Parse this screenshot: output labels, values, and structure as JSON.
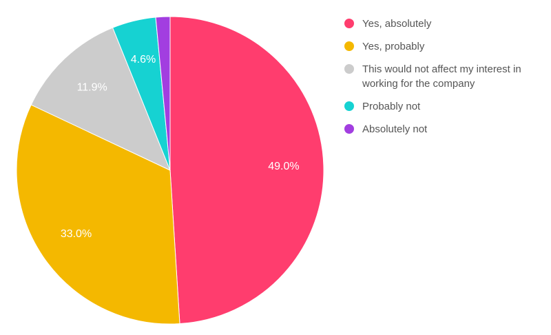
{
  "chart_data": {
    "type": "pie",
    "categories": [
      "Yes, absolutely",
      "Yes, probably",
      "This would not affect my interest in working for the company",
      "Probably not",
      "Absolutely not"
    ],
    "values": [
      49.0,
      33.0,
      11.9,
      4.6,
      1.5
    ],
    "value_labels": [
      "49.0%",
      "33.0%",
      "11.9%",
      "4.6%",
      null
    ],
    "colors": [
      "#ff3d6e",
      "#f4b800",
      "#cccccc",
      "#16d2d2",
      "#a23ee0"
    ],
    "legend": "right"
  }
}
